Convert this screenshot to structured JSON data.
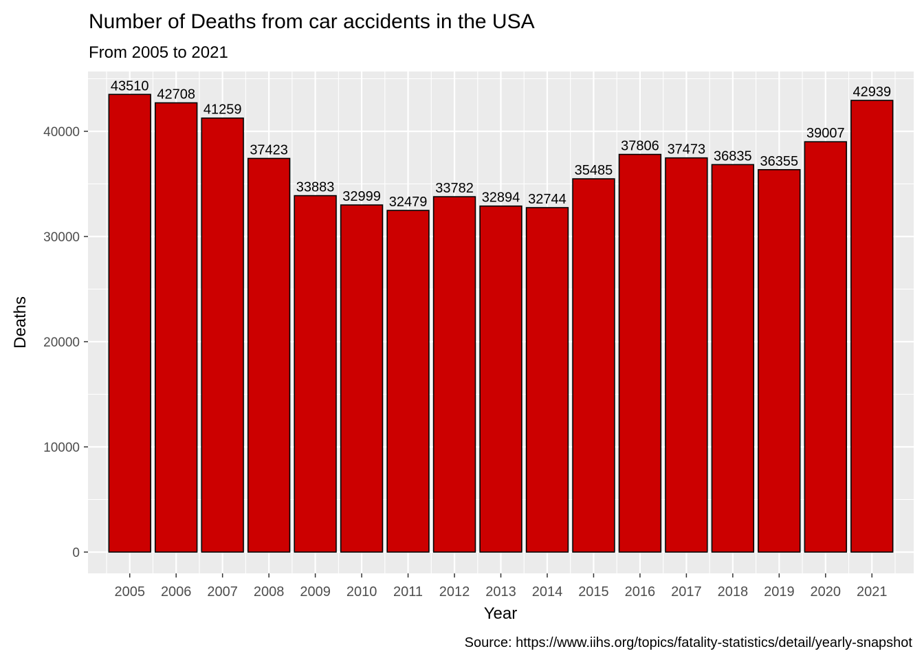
{
  "chart_data": {
    "type": "bar",
    "title": "Number of Deaths from car accidents in the USA",
    "subtitle": "From 2005 to 2021",
    "xlabel": "Year",
    "ylabel": "Deaths",
    "caption": "Source: https://www.iihs.org/topics/fatality-statistics/detail/yearly-snapshot",
    "categories": [
      "2005",
      "2006",
      "2007",
      "2008",
      "2009",
      "2010",
      "2011",
      "2012",
      "2013",
      "2014",
      "2015",
      "2016",
      "2017",
      "2018",
      "2019",
      "2020",
      "2021"
    ],
    "values": [
      43510,
      42708,
      41259,
      37423,
      33883,
      32999,
      32479,
      33782,
      32894,
      32744,
      35485,
      37806,
      37473,
      36835,
      36355,
      39007,
      42939
    ],
    "data_labels": [
      "43510",
      "42708",
      "41259",
      "37423",
      "33883",
      "32999",
      "32479",
      "33782",
      "32894",
      "32744",
      "35485",
      "37806",
      "37473",
      "36835",
      "36355",
      "39007",
      "42939"
    ],
    "yticks": [
      0,
      10000,
      20000,
      30000,
      40000
    ],
    "ytick_labels": [
      "0",
      "10000",
      "20000",
      "30000",
      "40000"
    ],
    "ylim": [
      -2175.5,
      45685.5
    ],
    "grid": true,
    "legend": "none",
    "colors": {
      "bar_fill": "#CC0000",
      "bar_outline": "#000000",
      "panel_background": "#EBEBEB",
      "grid": "#FFFFFF",
      "axis_text": "#4D4D4D"
    }
  }
}
